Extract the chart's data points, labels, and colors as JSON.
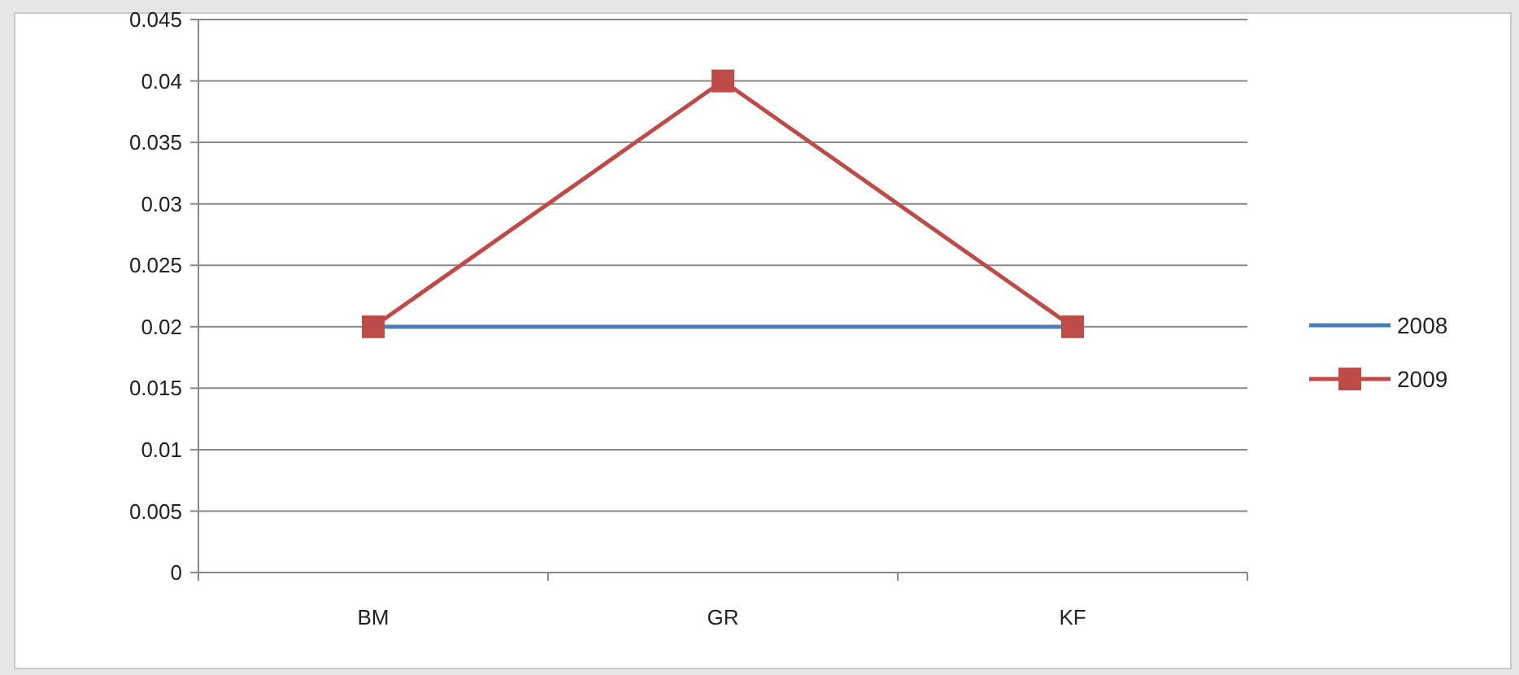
{
  "chart_data": {
    "type": "line",
    "categories": [
      "BM",
      "GR",
      "KF"
    ],
    "series": [
      {
        "name": "2008",
        "color": "#4a7ebb",
        "values": [
          0.02,
          0.02,
          0.02
        ],
        "marker": "none"
      },
      {
        "name": "2009",
        "color": "#be4b48",
        "values": [
          0.02,
          0.04,
          0.02
        ],
        "marker": "square"
      }
    ],
    "ylim": [
      0,
      0.045
    ],
    "yticks": [
      {
        "value": 0,
        "label": "0"
      },
      {
        "value": 0.005,
        "label": "0.005"
      },
      {
        "value": 0.01,
        "label": "0.01"
      },
      {
        "value": 0.015,
        "label": "0.015"
      },
      {
        "value": 0.02,
        "label": "0.02"
      },
      {
        "value": 0.025,
        "label": "0.025"
      },
      {
        "value": 0.03,
        "label": "0.03"
      },
      {
        "value": 0.035,
        "label": "0.035"
      },
      {
        "value": 0.04,
        "label": "0.04"
      },
      {
        "value": 0.045,
        "label": "0.045"
      }
    ],
    "grid": "y",
    "legend": "right",
    "line_style": "solid"
  }
}
